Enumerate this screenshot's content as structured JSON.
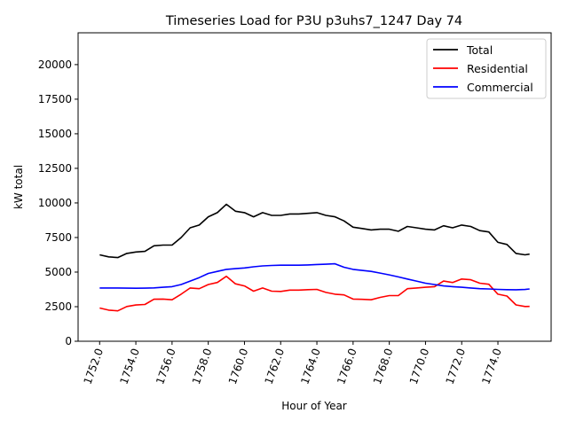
{
  "chart_data": {
    "type": "line",
    "title": "Timeseries Load for P3U p3uhs7_1247  Day 74",
    "xlabel": "Hour of Year",
    "ylabel": "kW total",
    "xlim": [
      1750.81,
      1776.94
    ],
    "ylim": [
      0,
      22300
    ],
    "xticks": [
      1752,
      1754,
      1756,
      1758,
      1760,
      1762,
      1764,
      1766,
      1768,
      1770,
      1772,
      1774
    ],
    "xtick_labels": [
      "1752.0",
      "1754.0",
      "1756.0",
      "1758.0",
      "1760.0",
      "1762.0",
      "1764.0",
      "1766.0",
      "1768.0",
      "1770.0",
      "1772.0",
      "1774.0"
    ],
    "yticks": [
      0,
      2500,
      5000,
      7500,
      10000,
      12500,
      15000,
      17500,
      20000
    ],
    "ytick_labels": [
      "0",
      "2500",
      "5000",
      "7500",
      "10000",
      "12500",
      "15000",
      "17500",
      "20000"
    ],
    "grid": false,
    "legend_position": "top-right",
    "x": [
      1752,
      1752.5,
      1753,
      1753.5,
      1754,
      1754.5,
      1755,
      1755.5,
      1756,
      1756.5,
      1757,
      1757.5,
      1758,
      1758.5,
      1759,
      1759.5,
      1760,
      1760.5,
      1761,
      1761.5,
      1762,
      1762.5,
      1763,
      1763.5,
      1764,
      1764.5,
      1765,
      1765.5,
      1766,
      1766.5,
      1767,
      1767.5,
      1768,
      1768.5,
      1769,
      1769.5,
      1770,
      1770.5,
      1771,
      1771.5,
      1772,
      1772.5,
      1773,
      1773.5,
      1774,
      1774.5,
      1775,
      1775.5,
      1775.75
    ],
    "series": [
      {
        "name": "Total",
        "color": "#000000",
        "values": [
          6250,
          6100,
          6050,
          6350,
          6450,
          6500,
          6900,
          6950,
          6950,
          7500,
          8200,
          8400,
          9000,
          9300,
          9900,
          9400,
          9300,
          9000,
          9300,
          9100,
          9100,
          9200,
          9200,
          9250,
          9300,
          9100,
          9000,
          8700,
          8250,
          8150,
          8050,
          8100,
          8100,
          7950,
          8300,
          8200,
          8100,
          8050,
          8350,
          8200,
          8400,
          8300,
          8000,
          7900,
          7150,
          7000,
          6350,
          6250,
          6300
        ]
      },
      {
        "name": "Residential",
        "color": "#ff0000",
        "values": [
          2400,
          2250,
          2200,
          2510,
          2620,
          2660,
          3040,
          3050,
          3000,
          3400,
          3850,
          3800,
          4100,
          4250,
          4700,
          4150,
          4000,
          3620,
          3850,
          3620,
          3600,
          3700,
          3700,
          3730,
          3750,
          3530,
          3400,
          3350,
          3050,
          3030,
          3000,
          3170,
          3300,
          3300,
          3800,
          3850,
          3900,
          3950,
          4350,
          4250,
          4500,
          4450,
          4200,
          4120,
          3400,
          3270,
          2630,
          2510,
          2520
        ]
      },
      {
        "name": "Commercial",
        "color": "#0000ff",
        "values": [
          3850,
          3850,
          3850,
          3840,
          3830,
          3840,
          3860,
          3900,
          3950,
          4100,
          4350,
          4600,
          4900,
          5050,
          5200,
          5250,
          5300,
          5380,
          5450,
          5480,
          5500,
          5500,
          5500,
          5520,
          5550,
          5570,
          5600,
          5350,
          5200,
          5120,
          5050,
          4930,
          4800,
          4650,
          4500,
          4350,
          4200,
          4100,
          4000,
          3950,
          3900,
          3850,
          3800,
          3780,
          3750,
          3730,
          3720,
          3740,
          3780
        ]
      }
    ]
  }
}
